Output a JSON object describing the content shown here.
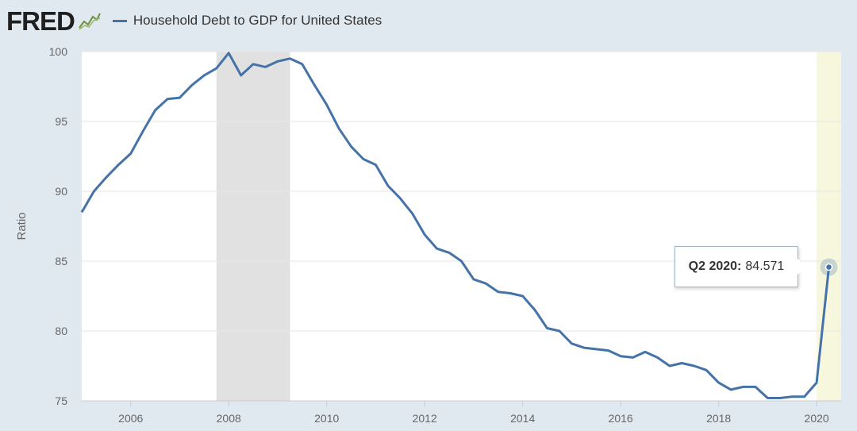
{
  "header": {
    "logo_text": "FRED",
    "series_title": "Household Debt to GDP for United States"
  },
  "tooltip": {
    "date": "Q2 2020:",
    "value": "84.571"
  },
  "colors": {
    "line": "#4572a7",
    "recession": "#e1e1e1",
    "recent_band": "#f6f7dc",
    "background": "#e1e9f0",
    "plot_background": "#ffffff"
  },
  "chart_data": {
    "type": "line",
    "title": "Household Debt to GDP for United States",
    "xlabel": "",
    "ylabel": "Ratio",
    "ylim": [
      75,
      100
    ],
    "yticks": [
      75,
      80,
      85,
      90,
      95,
      100
    ],
    "xticks": [
      "2006",
      "2008",
      "2010",
      "2012",
      "2014",
      "2016",
      "2018",
      "2020"
    ],
    "xlim": [
      "2005-Q1",
      "2020-Q3"
    ],
    "grid": true,
    "recession_shading": {
      "start": "2007-Q4",
      "end": "2009-Q2"
    },
    "series": [
      {
        "x": [
          "2005-Q1",
          "2005-Q2",
          "2005-Q3",
          "2005-Q4",
          "2006-Q1",
          "2006-Q2",
          "2006-Q3",
          "2006-Q4",
          "2007-Q1",
          "2007-Q2",
          "2007-Q3",
          "2007-Q4",
          "2008-Q1",
          "2008-Q2",
          "2008-Q3",
          "2008-Q4",
          "2009-Q1",
          "2009-Q2",
          "2009-Q3",
          "2009-Q4",
          "2010-Q1",
          "2010-Q2",
          "2010-Q3",
          "2010-Q4",
          "2011-Q1",
          "2011-Q2",
          "2011-Q3",
          "2011-Q4",
          "2012-Q1",
          "2012-Q2",
          "2012-Q3",
          "2012-Q4",
          "2013-Q1",
          "2013-Q2",
          "2013-Q3",
          "2013-Q4",
          "2014-Q1",
          "2014-Q2",
          "2014-Q3",
          "2014-Q4",
          "2015-Q1",
          "2015-Q2",
          "2015-Q3",
          "2015-Q4",
          "2016-Q1",
          "2016-Q2",
          "2016-Q3",
          "2016-Q4",
          "2017-Q1",
          "2017-Q2",
          "2017-Q3",
          "2017-Q4",
          "2018-Q1",
          "2018-Q2",
          "2018-Q3",
          "2018-Q4",
          "2019-Q1",
          "2019-Q2",
          "2019-Q3",
          "2019-Q4",
          "2020-Q1",
          "2020-Q2"
        ],
        "values": [
          88.5,
          90.0,
          91.0,
          91.9,
          92.7,
          94.3,
          95.8,
          96.6,
          96.7,
          97.6,
          98.3,
          98.8,
          99.9,
          98.3,
          99.1,
          98.9,
          99.3,
          99.5,
          99.1,
          97.6,
          96.2,
          94.5,
          93.2,
          92.3,
          91.9,
          90.4,
          89.5,
          88.4,
          86.9,
          85.9,
          85.6,
          85.0,
          83.7,
          83.4,
          82.8,
          82.7,
          82.5,
          81.5,
          80.2,
          80.0,
          79.1,
          78.8,
          78.7,
          78.6,
          78.2,
          78.1,
          78.5,
          78.1,
          77.5,
          77.7,
          77.5,
          77.2,
          76.3,
          75.8,
          76.0,
          76.0,
          75.2,
          75.2,
          75.3,
          75.3,
          76.3,
          84.571
        ]
      }
    ]
  }
}
